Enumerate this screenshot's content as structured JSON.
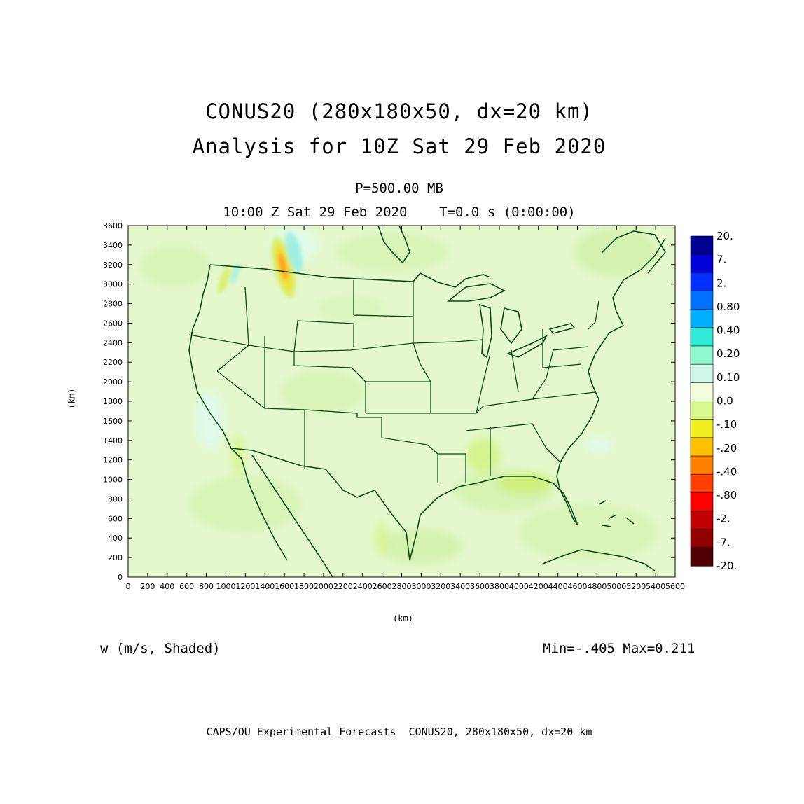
{
  "title_line1": "CONUS20 (280x180x50, dx=20 km)",
  "title_line2": "Analysis for 10Z Sat 29 Feb 2020",
  "level_text": "P=500.00 MB",
  "time_text": "10:00 Z Sat 29 Feb 2020    T=0.0 s (0:00:00)",
  "variable_label": "w (m/s, Shaded)",
  "minmax_text": "Min=-.405 Max=0.211",
  "footer_text": "CAPS/OU Experimental Forecasts  CONUS20, 280x180x50, dx=20 km",
  "axes": {
    "xlabel": "(km)",
    "ylabel": "(km)",
    "xlim": [
      0,
      5600
    ],
    "ylim": [
      0,
      3600
    ],
    "x_ticks": [
      "0",
      "200",
      "400",
      "600",
      "800",
      "1000",
      "1200",
      "1400",
      "1600",
      "1800",
      "2000",
      "2200",
      "2400",
      "2600",
      "2800",
      "3000",
      "3200",
      "3400",
      "3600",
      "3800",
      "4000",
      "4200",
      "4400",
      "4600",
      "4800",
      "5000",
      "5200",
      "5400",
      "5600"
    ],
    "y_ticks": [
      "0",
      "200",
      "400",
      "600",
      "800",
      "1000",
      "1200",
      "1400",
      "1600",
      "1800",
      "2000",
      "2200",
      "2400",
      "2600",
      "2800",
      "3000",
      "3200",
      "3400",
      "3600"
    ]
  },
  "colorbar": {
    "labels": [
      "20.",
      "7.",
      "2.",
      "0.80",
      "0.40",
      "0.20",
      "0.10",
      "0.0",
      "-.10",
      "-.20",
      "-.40",
      "-.80",
      "-2.",
      "-7.",
      "-20."
    ],
    "colors": [
      "#000090",
      "#0000d8",
      "#0030ff",
      "#0070ff",
      "#00b0ff",
      "#30e8d8",
      "#90f8d0",
      "#d0f8e8",
      "#f0fcdc",
      "#d8f890",
      "#f0f020",
      "#ffc000",
      "#ff8000",
      "#ff4000",
      "#ff0000",
      "#c00000",
      "#900000",
      "#500000"
    ]
  },
  "colors": {
    "field_background": "#e4f8cc",
    "coastline": "#0a4a14"
  }
}
